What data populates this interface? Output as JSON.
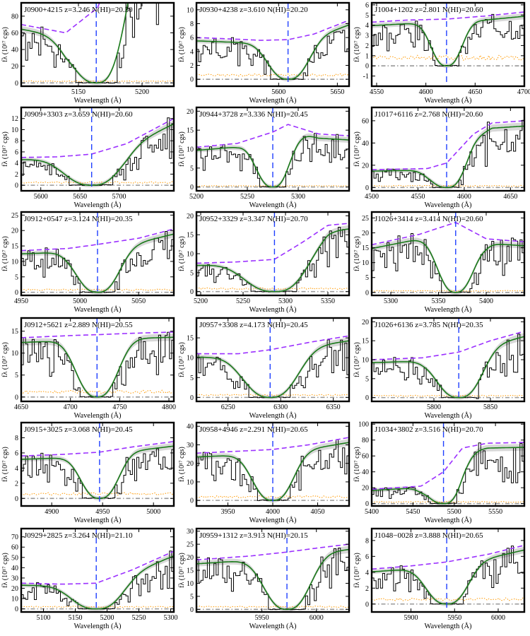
{
  "figure": {
    "ylabel": "fλ (10¹⁷ cgs)",
    "xlabel": "Wavelength (Å)"
  },
  "colors": {
    "data": "#000000",
    "model": "#1a7a1a",
    "continuum": "#9b30ff",
    "error": "#ff9900",
    "zero": "#999999",
    "center": "#1f3fff",
    "band": "#d8d8d8"
  },
  "chart_data": [
    {
      "type": "line",
      "title": "J0900+4215 z=3.246 N(HI)=20.30",
      "xlim": [
        5105,
        5225
      ],
      "ylim": [
        -4,
        96
      ],
      "xticks": [
        5150,
        5200
      ],
      "yticks": [
        0,
        20,
        40,
        60,
        80
      ],
      "center": 5164,
      "cont": [
        [
          5105,
          70
        ],
        [
          5140,
          60
        ],
        [
          5165,
          90
        ],
        [
          5190,
          185
        ],
        [
          5210,
          205
        ],
        [
          5225,
          210
        ]
      ],
      "width": 30,
      "depth": 1.0,
      "seed": 1,
      "err": 0
    },
    {
      "type": "line",
      "title": "J0930+4238 z=3.610 N(HI)=20.20",
      "xlim": [
        5530,
        5660
      ],
      "ylim": [
        -1,
        11
      ],
      "xticks": [
        5600,
        5650
      ],
      "yticks": [
        0,
        2,
        4,
        6,
        8,
        10
      ],
      "center": 5608,
      "cont": [
        [
          5530,
          6.0
        ],
        [
          5560,
          5.8
        ],
        [
          5585,
          5.6
        ],
        [
          5608,
          5.7
        ],
        [
          5630,
          6.5
        ],
        [
          5660,
          8.5
        ]
      ],
      "width": 24,
      "depth": 1.0,
      "seed": 2,
      "err": 0.6
    },
    {
      "type": "line",
      "title": "J1004+1202 z=2.801 N(HI)=20.60",
      "xlim": [
        4545,
        4700
      ],
      "ylim": [
        -2,
        6.2
      ],
      "xticks": [
        4550,
        4600,
        4650,
        4700
      ],
      "yticks": [
        -1,
        0,
        1,
        2,
        3,
        4,
        5,
        6
      ],
      "center": 4621,
      "cont": [
        [
          4545,
          4.3
        ],
        [
          4580,
          4.5
        ],
        [
          4621,
          4.6
        ],
        [
          4660,
          4.9
        ],
        [
          4700,
          5.3
        ]
      ],
      "width": 22,
      "depth": 1.0,
      "seed": 3,
      "err": 0.8
    },
    {
      "type": "line",
      "title": "J0909+3303 z=3.659 N(HI)=20.60",
      "xlim": [
        5575,
        5770
      ],
      "ylim": [
        -1,
        14
      ],
      "xticks": [
        5600,
        5650,
        5700
      ],
      "yticks": [
        0,
        2,
        4,
        6,
        8,
        10,
        12
      ],
      "center": 5665,
      "cont": [
        [
          5575,
          5.0
        ],
        [
          5620,
          5.1
        ],
        [
          5665,
          5.6
        ],
        [
          5710,
          7.5
        ],
        [
          5770,
          12.0
        ]
      ],
      "width": 50,
      "depth": 1.0,
      "seed": 4,
      "err": 0.5
    },
    {
      "type": "line",
      "title": "J0944+3728 z=3.336 N(HI)=20.45",
      "xlim": [
        5200,
        5350
      ],
      "ylim": [
        -1,
        21
      ],
      "xticks": [
        5200,
        5250,
        5300
      ],
      "yticks": [
        0,
        5,
        10,
        15,
        20
      ],
      "center": 5275,
      "cont": [
        [
          5200,
          10.5
        ],
        [
          5240,
          11.5
        ],
        [
          5275,
          14.5
        ],
        [
          5290,
          16.5
        ],
        [
          5320,
          14.0
        ],
        [
          5350,
          13.5
        ]
      ],
      "width": 24,
      "depth": 1.0,
      "seed": 5,
      "err": 0.3
    },
    {
      "type": "line",
      "title": "J1017+6116 z=2.768 N(HI)=20.60",
      "xlim": [
        4500,
        4665
      ],
      "ylim": [
        -3,
        72
      ],
      "xticks": [
        4500,
        4550,
        4600,
        4650
      ],
      "yticks": [
        0,
        20,
        40,
        60
      ],
      "center": 4581,
      "cont": [
        [
          4500,
          16
        ],
        [
          4560,
          17
        ],
        [
          4581,
          22
        ],
        [
          4610,
          48
        ],
        [
          4630,
          58
        ],
        [
          4665,
          60
        ]
      ],
      "width": 26,
      "depth": 1.0,
      "seed": 6,
      "err": 0
    },
    {
      "type": "line",
      "title": "J0912+0547 z=3.124 N(HI)=20.35",
      "xlim": [
        4950,
        5080
      ],
      "ylim": [
        -1,
        26
      ],
      "xticks": [
        4950,
        5000,
        5050
      ],
      "yticks": [
        0,
        5,
        10,
        15,
        20,
        25
      ],
      "center": 5015,
      "cont": [
        [
          4950,
          13.5
        ],
        [
          4990,
          14.2
        ],
        [
          5015,
          15.5
        ],
        [
          5050,
          17.5
        ],
        [
          5080,
          20.5
        ]
      ],
      "width": 26,
      "depth": 1.0,
      "seed": 7,
      "err": 0.8
    },
    {
      "type": "line",
      "title": "J0952+3329 z=3.347 N(HI)=20.70",
      "xlim": [
        5195,
        5375
      ],
      "ylim": [
        -1,
        21
      ],
      "xticks": [
        5200,
        5250,
        5300,
        5350
      ],
      "yticks": [
        0,
        5,
        10,
        15,
        20
      ],
      "center": 5287,
      "cont": [
        [
          5195,
          7.5
        ],
        [
          5240,
          7.8
        ],
        [
          5287,
          8.5
        ],
        [
          5320,
          13
        ],
        [
          5350,
          17.5
        ],
        [
          5375,
          18
        ]
      ],
      "width": 50,
      "depth": 1.0,
      "seed": 8,
      "err": 0.8
    },
    {
      "type": "line",
      "title": "J1026+3414 z=3.414 N(HI)=20.60",
      "xlim": [
        5280,
        5440
      ],
      "ylim": [
        -1,
        27
      ],
      "xticks": [
        5300,
        5350,
        5400
      ],
      "yticks": [
        0,
        5,
        10,
        15,
        20,
        25
      ],
      "center": 5368,
      "cont": [
        [
          5280,
          16
        ],
        [
          5330,
          19.5
        ],
        [
          5368,
          23.5
        ],
        [
          5400,
          18
        ],
        [
          5440,
          17
        ]
      ],
      "width": 28,
      "depth": 1.0,
      "seed": 9,
      "err": 0.5
    },
    {
      "type": "line",
      "title": "J0912+5621 z=2.889 N(HI)=20.55",
      "xlim": [
        4650,
        4805
      ],
      "ylim": [
        -1,
        18
      ],
      "xticks": [
        4650,
        4700,
        4750,
        4800
      ],
      "yticks": [
        0,
        5,
        10,
        15
      ],
      "center": 4727,
      "cont": [
        [
          4650,
          13.5
        ],
        [
          4700,
          14
        ],
        [
          4727,
          14.2
        ],
        [
          4760,
          14.5
        ],
        [
          4805,
          14.8
        ]
      ],
      "width": 30,
      "depth": 1.0,
      "seed": 10,
      "err": 1.2
    },
    {
      "type": "line",
      "title": "J0957+3308 z=4.173 N(HI)=20.45",
      "xlim": [
        6220,
        6365
      ],
      "ylim": [
        -1,
        20
      ],
      "xticks": [
        6250,
        6300,
        6350
      ],
      "yticks": [
        0,
        5,
        10,
        15
      ],
      "center": 6290,
      "cont": [
        [
          6220,
          11
        ],
        [
          6260,
          11
        ],
        [
          6290,
          12
        ],
        [
          6330,
          14
        ],
        [
          6365,
          15.5
        ]
      ],
      "width": 36,
      "depth": 1.0,
      "seed": 11,
      "err": 0.6
    },
    {
      "type": "line",
      "title": "J1026+6136 z=3.785 N(HI)=20.35",
      "xlim": [
        5745,
        5880
      ],
      "ylim": [
        -1,
        21
      ],
      "xticks": [
        5800,
        5850
      ],
      "yticks": [
        0,
        5,
        10,
        15,
        20
      ],
      "center": 5822,
      "cont": [
        [
          5745,
          10
        ],
        [
          5790,
          10.5
        ],
        [
          5822,
          12
        ],
        [
          5850,
          15
        ],
        [
          5880,
          17.5
        ]
      ],
      "width": 28,
      "depth": 1.0,
      "seed": 12,
      "err": 0.5
    },
    {
      "type": "line",
      "title": "J0915+3025 z=3.068 N(HI)=20.45",
      "xlim": [
        4870,
        5020
      ],
      "ylim": [
        -1,
        10
      ],
      "xticks": [
        4900,
        4950,
        5000
      ],
      "yticks": [
        0,
        2,
        4,
        6,
        8
      ],
      "center": 4947,
      "cont": [
        [
          4870,
          5.6
        ],
        [
          4910,
          5.8
        ],
        [
          4947,
          6.1
        ],
        [
          4980,
          6.8
        ],
        [
          5020,
          7.5
        ]
      ],
      "width": 26,
      "depth": 1.0,
      "seed": 13,
      "err": 0.6
    },
    {
      "type": "line",
      "title": "J0958+4946 z=2.291 N(HI)=20.65",
      "xlim": [
        3915,
        4085
      ],
      "ylim": [
        -3,
        42
      ],
      "xticks": [
        3950,
        4000,
        4050
      ],
      "yticks": [
        0,
        10,
        20,
        30,
        40
      ],
      "center": 4000,
      "cont": [
        [
          3915,
          25.5
        ],
        [
          3960,
          26.5
        ],
        [
          4000,
          27.5
        ],
        [
          4040,
          30
        ],
        [
          4085,
          34
        ]
      ],
      "width": 32,
      "depth": 1.0,
      "seed": 14,
      "err": 2
    },
    {
      "type": "line",
      "title": "J1034+3802 z=3.516 N(HI)=20.70",
      "xlim": [
        5400,
        5585
      ],
      "ylim": [
        -3,
        102
      ],
      "xticks": [
        5400,
        5450,
        5500,
        5550
      ],
      "yticks": [
        0,
        20,
        40,
        60,
        80,
        100
      ],
      "center": 5487,
      "cont": [
        [
          5400,
          18
        ],
        [
          5460,
          22
        ],
        [
          5487,
          40
        ],
        [
          5510,
          70
        ],
        [
          5540,
          76
        ],
        [
          5585,
          77
        ]
      ],
      "width": 30,
      "depth": 1.0,
      "seed": 15,
      "err": 0
    },
    {
      "type": "line",
      "title": "J0929+2825 z=3.264 N(HI)=21.10",
      "xlim": [
        5065,
        5305
      ],
      "ylim": [
        -3,
        78
      ],
      "xticks": [
        5100,
        5150,
        5200,
        5250,
        5300
      ],
      "yticks": [
        0,
        10,
        20,
        30,
        40,
        50,
        60,
        70
      ],
      "center": 5183,
      "cont": [
        [
          5065,
          25
        ],
        [
          5130,
          24
        ],
        [
          5183,
          25
        ],
        [
          5240,
          38
        ],
        [
          5305,
          56
        ]
      ],
      "width": 55,
      "depth": 1.0,
      "seed": 16,
      "err": 2
    },
    {
      "type": "line",
      "title": "J0959+1312 z=3.913 N(HI)=20.15",
      "xlim": [
        5890,
        6030
      ],
      "ylim": [
        -1,
        31
      ],
      "xticks": [
        5950,
        6000
      ],
      "yticks": [
        0,
        5,
        10,
        15,
        20,
        25,
        30
      ],
      "center": 5973,
      "cont": [
        [
          5890,
          19
        ],
        [
          5940,
          20.5
        ],
        [
          5973,
          22
        ],
        [
          6000,
          23.5
        ],
        [
          6030,
          25
        ]
      ],
      "width": 30,
      "depth": 1.0,
      "seed": 17,
      "err": 1
    },
    {
      "type": "line",
      "title": "J1048−0028 z=3.888 N(HI)=20.65",
      "xlim": [
        5855,
        6030
      ],
      "ylim": [
        -1,
        9.5
      ],
      "xticks": [
        5900,
        5950,
        6000
      ],
      "yticks": [
        0,
        2,
        4,
        6,
        8
      ],
      "center": 5941,
      "cont": [
        [
          5855,
          4.4
        ],
        [
          5900,
          4.8
        ],
        [
          5941,
          5.3
        ],
        [
          5990,
          6.3
        ],
        [
          6030,
          7.4
        ]
      ],
      "width": 34,
      "depth": 1.0,
      "seed": 18,
      "err": 0.6
    }
  ]
}
